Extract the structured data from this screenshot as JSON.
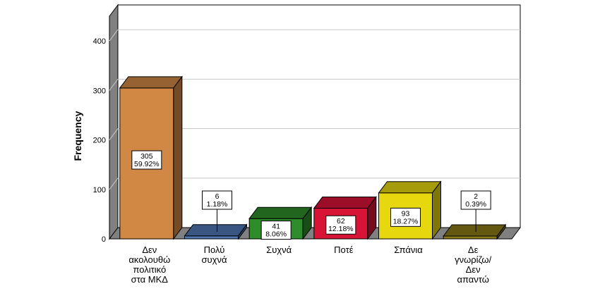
{
  "chart_data": {
    "type": "bar",
    "title": "",
    "xlabel": "",
    "ylabel": "Frequency",
    "ylim": [
      0,
      450
    ],
    "yticks": [
      "0",
      "100",
      "200",
      "300",
      "400"
    ],
    "grid": true,
    "categories": [
      [
        "Δεν",
        "ακολουθώ",
        "πολιτικό",
        "στα ΜΚΔ"
      ],
      [
        "Πολύ",
        "συχνά"
      ],
      [
        "Συχνά"
      ],
      [
        "Ποτέ"
      ],
      [
        "Σπάνια"
      ],
      [
        "Δε",
        "γνωρίζω/",
        "Δεν",
        "απαντώ"
      ]
    ],
    "values": [
      305,
      6,
      41,
      62,
      93,
      2
    ],
    "percent_labels": [
      "59.92%",
      "1.18%",
      "8.06%",
      "12.18%",
      "18.27%",
      "0.39%"
    ],
    "count_labels": [
      "305",
      "6",
      "41",
      "62",
      "93",
      "2"
    ],
    "colors": [
      "#d18845",
      "#4f78b4",
      "#2e8c2b",
      "#d81436",
      "#e6d70f",
      "#8b7a17"
    ]
  }
}
